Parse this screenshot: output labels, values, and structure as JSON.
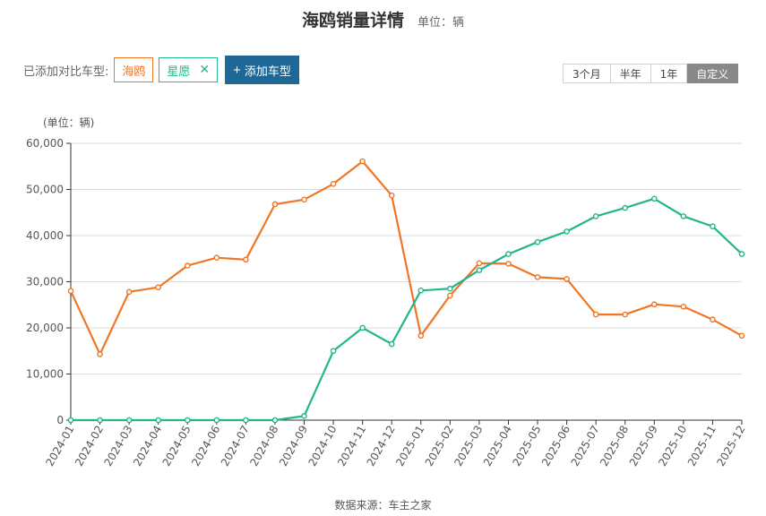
{
  "header": {
    "title": "海鸥销量详情",
    "unit": "单位：辆"
  },
  "compare": {
    "label": "已添加对比车型:",
    "models": [
      {
        "name": "海鸥",
        "removable": false,
        "color": "#f07524"
      },
      {
        "name": "星愿",
        "removable": true,
        "color": "#21b68c"
      }
    ],
    "remove_icon": "✕",
    "add_icon": "+",
    "add_label": "添加车型"
  },
  "range": {
    "options": [
      "3个月",
      "半年",
      "1年",
      "自定义"
    ],
    "active": "自定义"
  },
  "source": "数据来源：车主之家",
  "chart_data": {
    "type": "line",
    "ylabel": "(单位：辆)",
    "ylim": [
      0,
      60000
    ],
    "yticks": [
      0,
      10000,
      20000,
      30000,
      40000,
      50000,
      60000
    ],
    "ytick_labels": [
      "0",
      "10,000",
      "20,000",
      "30,000",
      "40,000",
      "50,000",
      "60,000"
    ],
    "grid": true,
    "x": [
      "2024-01",
      "2024-02",
      "2024-03",
      "2024-04",
      "2024-05",
      "2024-06",
      "2024-07",
      "2024-08",
      "2024-09",
      "2024-10",
      "2024-11",
      "2024-12",
      "2025-01",
      "2025-02",
      "2025-03",
      "2025-04",
      "2025-05",
      "2025-06",
      "2025-07",
      "2025-08",
      "2025-09",
      "2025-10",
      "2025-11",
      "2025-12"
    ],
    "series": [
      {
        "name": "海鸥",
        "color": "#f07524",
        "values": [
          28000,
          14300,
          27800,
          28800,
          33500,
          35200,
          34800,
          46800,
          47800,
          51200,
          56100,
          48700,
          18300,
          27000,
          34000,
          33900,
          31000,
          30600,
          22900,
          22900,
          25100,
          24600,
          21800,
          18300
        ]
      },
      {
        "name": "星愿",
        "color": "#21b68c",
        "values": [
          0,
          0,
          0,
          0,
          0,
          0,
          0,
          0,
          900,
          15000,
          20000,
          16500,
          28100,
          28500,
          32500,
          36000,
          38600,
          40900,
          44200,
          46000,
          48000,
          44200,
          42000,
          36000
        ]
      }
    ]
  }
}
